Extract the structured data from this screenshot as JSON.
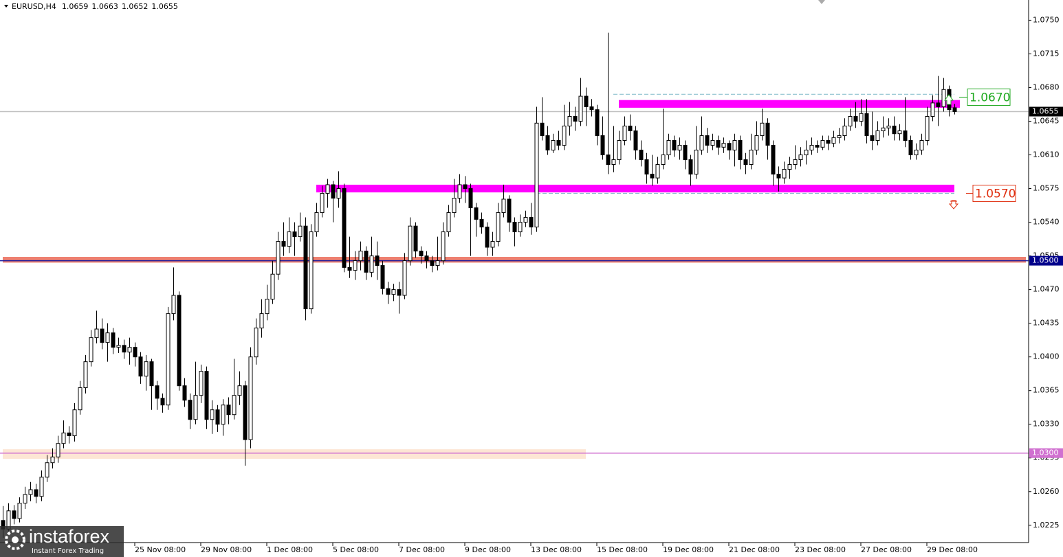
{
  "chart_data": {
    "type": "candlestick",
    "title": "EURUSD,H4",
    "quote": [
      1.0659,
      1.0663,
      1.0652,
      1.0655
    ],
    "watermark": [
      "instaforex",
      "Instant Forex Trading"
    ],
    "up_color": "#ffffff",
    "down_color": "#000000",
    "ylim": [
      1.0207,
      1.0771
    ],
    "yticks": [
      {
        "value": 1.075,
        "label": "1.0750"
      },
      {
        "value": 1.0715,
        "label": "1.0715"
      },
      {
        "value": 1.068,
        "label": "1.0680"
      },
      {
        "value": 1.0645,
        "label": "1.0645"
      },
      {
        "value": 1.061,
        "label": "1.0610"
      },
      {
        "value": 1.0575,
        "label": "1.0575"
      },
      {
        "value": 1.054,
        "label": "1.0540"
      },
      {
        "value": 1.0505,
        "label": "1.0505"
      },
      {
        "value": 1.047,
        "label": "1.0470"
      },
      {
        "value": 1.0435,
        "label": "1.0435"
      },
      {
        "value": 1.04,
        "label": "1.0400"
      },
      {
        "value": 1.0365,
        "label": "1.0365"
      },
      {
        "value": 1.033,
        "label": "1.0330"
      },
      {
        "value": 1.0295,
        "label": "1.0295"
      },
      {
        "value": 1.026,
        "label": "1.0260"
      },
      {
        "value": 1.0225,
        "label": "1.0225"
      }
    ],
    "xticks": [
      {
        "value": 24,
        "label": "25 Nov 08:00"
      },
      {
        "value": 36,
        "label": "29 Nov 08:00"
      },
      {
        "value": 48,
        "label": "1 Dec 08:00"
      },
      {
        "value": 60,
        "label": "5 Dec 08:00"
      },
      {
        "value": 72,
        "label": "7 Dec 08:00"
      },
      {
        "value": 84,
        "label": "9 Dec 08:00"
      },
      {
        "value": 96,
        "label": "13 Dec 08:00"
      },
      {
        "value": 108,
        "label": "15 Dec 08:00"
      },
      {
        "value": 120,
        "label": "19 Dec 08:00"
      },
      {
        "value": 132,
        "label": "21 Dec 08:00"
      },
      {
        "value": 144,
        "label": "23 Dec 08:00"
      },
      {
        "value": 156,
        "label": "27 Dec 08:00"
      },
      {
        "value": 168,
        "label": "29 Dec 08:00"
      }
    ],
    "zones": [
      {
        "low": 1.0294,
        "high": 1.0304,
        "from": 0,
        "to": 106,
        "color": "#fde6d4"
      },
      {
        "low": 1.0498,
        "high": 1.0504,
        "from": 0,
        "to": 186,
        "color": "#ee8070"
      },
      {
        "low": 1.0571,
        "high": 1.0579,
        "from": 57,
        "to": 173,
        "color": "#ff00ff"
      },
      {
        "low": 1.0659,
        "high": 1.0667,
        "from": 112,
        "to": 174,
        "color": "#ff00ff"
      }
    ],
    "dashed": [
      {
        "value": 1.0673,
        "from": 111,
        "to": 173,
        "color": "#7fb8c8"
      },
      {
        "value": 1.057,
        "from": 97,
        "to": 173,
        "color": "#7fb8c8"
      }
    ],
    "levels": [
      {
        "value": 1.0655,
        "label": "1.0655",
        "color": "#c0c0c0",
        "tag_color": "#000000"
      },
      {
        "value": 1.05,
        "label": "1.0500",
        "color": "#1a1aa0",
        "tag_color": "#00008b"
      },
      {
        "value": 1.03,
        "label": "1.0300",
        "color": "#d070d0",
        "tag_color": "#d070d0"
      }
    ],
    "annotations": [
      {
        "value": 1.067,
        "label": "1.0670",
        "color": "#22aa22"
      },
      {
        "value": 1.057,
        "label": "1.0570",
        "color": "#e03010"
      }
    ],
    "ohlc": [
      [
        1.023,
        1.0245,
        1.0212,
        1.0221
      ],
      [
        1.0221,
        1.0248,
        1.0215,
        1.024
      ],
      [
        1.024,
        1.0246,
        1.0226,
        1.0232
      ],
      [
        1.0232,
        1.0254,
        1.0228,
        1.0248
      ],
      [
        1.0248,
        1.0265,
        1.0242,
        1.0257
      ],
      [
        1.0257,
        1.027,
        1.025,
        1.0262
      ],
      [
        1.0262,
        1.0268,
        1.0248,
        1.0255
      ],
      [
        1.0255,
        1.0282,
        1.025,
        1.0275
      ],
      [
        1.0275,
        1.0298,
        1.027,
        1.029
      ],
      [
        1.029,
        1.0305,
        1.0284,
        1.0296
      ],
      [
        1.0296,
        1.0318,
        1.029,
        1.031
      ],
      [
        1.031,
        1.0334,
        1.0305,
        1.0321
      ],
      [
        1.0321,
        1.0328,
        1.031,
        1.0318
      ],
      [
        1.0318,
        1.0352,
        1.0312,
        1.0345
      ],
      [
        1.0345,
        1.0375,
        1.034,
        1.0368
      ],
      [
        1.0368,
        1.0402,
        1.0362,
        1.0395
      ],
      [
        1.0395,
        1.0428,
        1.039,
        1.042
      ],
      [
        1.042,
        1.0448,
        1.0414,
        1.0429
      ],
      [
        1.0429,
        1.044,
        1.0408,
        1.0415
      ],
      [
        1.0415,
        1.0435,
        1.0395,
        1.0425
      ],
      [
        1.0425,
        1.043,
        1.0403,
        1.041
      ],
      [
        1.041,
        1.042,
        1.0404,
        1.0412
      ],
      [
        1.0412,
        1.0418,
        1.0398,
        1.0405
      ],
      [
        1.0405,
        1.042,
        1.0392,
        1.041
      ],
      [
        1.041,
        1.0415,
        1.039,
        1.04
      ],
      [
        1.04,
        1.0405,
        1.0372,
        1.038
      ],
      [
        1.038,
        1.0402,
        1.0365,
        1.0395
      ],
      [
        1.0395,
        1.0398,
        1.0345,
        1.037
      ],
      [
        1.037,
        1.0375,
        1.0345,
        1.0357
      ],
      [
        1.0357,
        1.0362,
        1.0342,
        1.035
      ],
      [
        1.035,
        1.0452,
        1.0345,
        1.0445
      ],
      [
        1.0445,
        1.0493,
        1.0438,
        1.0464
      ],
      [
        1.0464,
        1.0468,
        1.0365,
        1.037
      ],
      [
        1.037,
        1.0378,
        1.0348,
        1.0355
      ],
      [
        1.0355,
        1.0362,
        1.0325,
        1.0335
      ],
      [
        1.0335,
        1.0395,
        1.033,
        1.036
      ],
      [
        1.036,
        1.0392,
        1.0352,
        1.0385
      ],
      [
        1.0385,
        1.039,
        1.0325,
        1.0335
      ],
      [
        1.0335,
        1.0355,
        1.032,
        1.0345
      ],
      [
        1.0345,
        1.035,
        1.0322,
        1.033
      ],
      [
        1.033,
        1.0356,
        1.0318,
        1.035
      ],
      [
        1.035,
        1.0358,
        1.033,
        1.034
      ],
      [
        1.034,
        1.0398,
        1.0335,
        1.036
      ],
      [
        1.036,
        1.0385,
        1.035,
        1.037
      ],
      [
        1.037,
        1.0375,
        1.0287,
        1.0314
      ],
      [
        1.0314,
        1.041,
        1.0305,
        1.04
      ],
      [
        1.04,
        1.044,
        1.0392,
        1.043
      ],
      [
        1.043,
        1.046,
        1.042,
        1.0445
      ],
      [
        1.0445,
        1.0475,
        1.0438,
        1.046
      ],
      [
        1.046,
        1.05,
        1.0455,
        1.0486
      ],
      [
        1.0486,
        1.053,
        1.048,
        1.052
      ],
      [
        1.052,
        1.054,
        1.0505,
        1.0515
      ],
      [
        1.0515,
        1.0545,
        1.0508,
        1.053
      ],
      [
        1.053,
        1.054,
        1.0505,
        1.0525
      ],
      [
        1.0525,
        1.055,
        1.052,
        1.0536
      ],
      [
        1.0536,
        1.0545,
        1.0438,
        1.045
      ],
      [
        1.045,
        1.0538,
        1.0445,
        1.053
      ],
      [
        1.053,
        1.056,
        1.0525,
        1.055
      ],
      [
        1.055,
        1.0578,
        1.0545,
        1.057
      ],
      [
        1.057,
        1.0585,
        1.0555,
        1.0579
      ],
      [
        1.0579,
        1.0583,
        1.054,
        1.0565
      ],
      [
        1.0565,
        1.0593,
        1.0555,
        1.0575
      ],
      [
        1.0575,
        1.058,
        1.0488,
        1.0493
      ],
      [
        1.0493,
        1.0525,
        1.0482,
        1.049
      ],
      [
        1.049,
        1.051,
        1.048,
        1.05
      ],
      [
        1.05,
        1.052,
        1.049,
        1.051
      ],
      [
        1.051,
        1.0515,
        1.048,
        1.0488
      ],
      [
        1.0488,
        1.0525,
        1.0483,
        1.0505
      ],
      [
        1.0505,
        1.052,
        1.048,
        1.0495
      ],
      [
        1.0495,
        1.05,
        1.0465,
        1.0471
      ],
      [
        1.0471,
        1.0478,
        1.0455,
        1.0465
      ],
      [
        1.0465,
        1.0476,
        1.0458,
        1.047
      ],
      [
        1.047,
        1.0478,
        1.0445,
        1.0464
      ],
      [
        1.0464,
        1.0508,
        1.046,
        1.05
      ],
      [
        1.05,
        1.0545,
        1.0495,
        1.0536
      ],
      [
        1.0536,
        1.054,
        1.0503,
        1.051
      ],
      [
        1.051,
        1.0515,
        1.0497,
        1.0505
      ],
      [
        1.0505,
        1.051,
        1.0492,
        1.05
      ],
      [
        1.05,
        1.0505,
        1.0488,
        1.0495
      ],
      [
        1.0495,
        1.0525,
        1.049,
        1.05
      ],
      [
        1.05,
        1.054,
        1.0496,
        1.053
      ],
      [
        1.053,
        1.0558,
        1.0525,
        1.055
      ],
      [
        1.055,
        1.0585,
        1.0545,
        1.0565
      ],
      [
        1.0565,
        1.059,
        1.056,
        1.0579
      ],
      [
        1.0579,
        1.0588,
        1.056,
        1.0575
      ],
      [
        1.0575,
        1.058,
        1.0505,
        1.0555
      ],
      [
        1.0555,
        1.056,
        1.0525,
        1.0543
      ],
      [
        1.0543,
        1.055,
        1.0528,
        1.0535
      ],
      [
        1.0535,
        1.054,
        1.0505,
        1.0514
      ],
      [
        1.0514,
        1.053,
        1.0505,
        1.052
      ],
      [
        1.052,
        1.056,
        1.0515,
        1.055
      ],
      [
        1.055,
        1.0579,
        1.0545,
        1.0564
      ],
      [
        1.0564,
        1.0568,
        1.053,
        1.054
      ],
      [
        1.054,
        1.0545,
        1.0515,
        1.053
      ],
      [
        1.053,
        1.0548,
        1.0525,
        1.054
      ],
      [
        1.054,
        1.0552,
        1.0535,
        1.0545
      ],
      [
        1.0545,
        1.056,
        1.0527,
        1.0535
      ],
      [
        1.0535,
        1.066,
        1.053,
        1.0643
      ],
      [
        1.0643,
        1.067,
        1.0625,
        1.063
      ],
      [
        1.063,
        1.064,
        1.061,
        1.0615
      ],
      [
        1.0615,
        1.0632,
        1.0612,
        1.0625
      ],
      [
        1.0625,
        1.0635,
        1.0615,
        1.062
      ],
      [
        1.062,
        1.0662,
        1.0615,
        1.064
      ],
      [
        1.064,
        1.0665,
        1.063,
        1.065
      ],
      [
        1.065,
        1.066,
        1.0635,
        1.0645
      ],
      [
        1.0645,
        1.069,
        1.064,
        1.0671
      ],
      [
        1.0671,
        1.068,
        1.064,
        1.066
      ],
      [
        1.066,
        1.0668,
        1.065,
        1.0657
      ],
      [
        1.0657,
        1.0662,
        1.062,
        1.063
      ],
      [
        1.063,
        1.065,
        1.0605,
        1.061
      ],
      [
        1.061,
        1.0737,
        1.059,
        1.06
      ],
      [
        1.06,
        1.064,
        1.0592,
        1.0605
      ],
      [
        1.0605,
        1.0635,
        1.06,
        1.0625
      ],
      [
        1.0625,
        1.065,
        1.062,
        1.064
      ],
      [
        1.064,
        1.0652,
        1.0625,
        1.0635
      ],
      [
        1.0635,
        1.064,
        1.0605,
        1.0615
      ],
      [
        1.0615,
        1.0625,
        1.0598,
        1.0605
      ],
      [
        1.0605,
        1.0612,
        1.058,
        1.059
      ],
      [
        1.059,
        1.061,
        1.0578,
        1.0586
      ],
      [
        1.0586,
        1.0608,
        1.058,
        1.06
      ],
      [
        1.06,
        1.0658,
        1.0595,
        1.061
      ],
      [
        1.061,
        1.0632,
        1.0605,
        1.0625
      ],
      [
        1.0625,
        1.063,
        1.0608,
        1.0615
      ],
      [
        1.0615,
        1.0628,
        1.0605,
        1.062
      ],
      [
        1.062,
        1.0625,
        1.0595,
        1.0605
      ],
      [
        1.0605,
        1.061,
        1.0578,
        1.059
      ],
      [
        1.059,
        1.064,
        1.0585,
        1.0615
      ],
      [
        1.0615,
        1.065,
        1.061,
        1.063
      ],
      [
        1.063,
        1.0638,
        1.0612,
        1.062
      ],
      [
        1.062,
        1.0632,
        1.0615,
        1.0625
      ],
      [
        1.0625,
        1.063,
        1.061,
        1.0618
      ],
      [
        1.0618,
        1.0628,
        1.0612,
        1.0622
      ],
      [
        1.0622,
        1.0625,
        1.0605,
        1.0615
      ],
      [
        1.0615,
        1.0632,
        1.0598,
        1.0625
      ],
      [
        1.0625,
        1.063,
        1.0595,
        1.0605
      ],
      [
        1.0605,
        1.0612,
        1.059,
        1.06
      ],
      [
        1.06,
        1.0632,
        1.0595,
        1.0615
      ],
      [
        1.0615,
        1.0645,
        1.061,
        1.063
      ],
      [
        1.063,
        1.0658,
        1.0625,
        1.0643
      ],
      [
        1.0643,
        1.0648,
        1.0605,
        1.062
      ],
      [
        1.062,
        1.0625,
        1.0578,
        1.059
      ],
      [
        1.059,
        1.0598,
        1.0572,
        1.0586
      ],
      [
        1.0586,
        1.0603,
        1.058,
        1.0595
      ],
      [
        1.0595,
        1.0608,
        1.0585,
        1.06
      ],
      [
        1.06,
        1.062,
        1.0595,
        1.0605
      ],
      [
        1.0605,
        1.0618,
        1.0598,
        1.061
      ],
      [
        1.061,
        1.0625,
        1.06,
        1.0615
      ],
      [
        1.0615,
        1.0628,
        1.061,
        1.062
      ],
      [
        1.062,
        1.0625,
        1.0612,
        1.0618
      ],
      [
        1.0618,
        1.063,
        1.0615,
        1.0625
      ],
      [
        1.0625,
        1.063,
        1.0615,
        1.0622
      ],
      [
        1.0622,
        1.0635,
        1.0618,
        1.0628
      ],
      [
        1.0628,
        1.0638,
        1.0622,
        1.063
      ],
      [
        1.063,
        1.0648,
        1.0625,
        1.064
      ],
      [
        1.064,
        1.0658,
        1.0635,
        1.065
      ],
      [
        1.065,
        1.0665,
        1.0638,
        1.0645
      ],
      [
        1.0645,
        1.0668,
        1.064,
        1.0653
      ],
      [
        1.0653,
        1.0668,
        1.0622,
        1.063
      ],
      [
        1.063,
        1.0655,
        1.0615,
        1.0625
      ],
      [
        1.0625,
        1.0645,
        1.062,
        1.0635
      ],
      [
        1.0635,
        1.065,
        1.0628,
        1.0638
      ],
      [
        1.0638,
        1.0648,
        1.063,
        1.064
      ],
      [
        1.064,
        1.065,
        1.0625,
        1.0632
      ],
      [
        1.0632,
        1.0642,
        1.0625,
        1.0635
      ],
      [
        1.0635,
        1.067,
        1.0618,
        1.0625
      ],
      [
        1.0625,
        1.063,
        1.0605,
        1.061
      ],
      [
        1.061,
        1.0622,
        1.0605,
        1.0615
      ],
      [
        1.0615,
        1.0632,
        1.061,
        1.0625
      ],
      [
        1.0625,
        1.066,
        1.062,
        1.065
      ],
      [
        1.065,
        1.0672,
        1.0645,
        1.0664
      ],
      [
        1.0664,
        1.0692,
        1.064,
        1.066
      ],
      [
        1.066,
        1.069,
        1.0655,
        1.0678
      ],
      [
        1.0678,
        1.0682,
        1.065,
        1.0657
      ],
      [
        1.0659,
        1.0663,
        1.0652,
        1.0655
      ]
    ]
  }
}
